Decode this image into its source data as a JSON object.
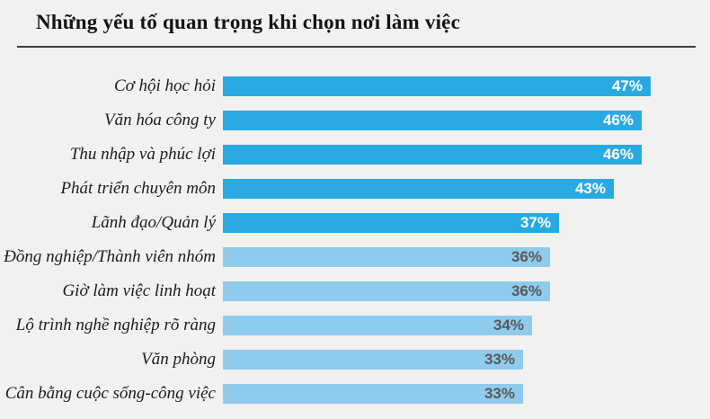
{
  "chart_data": {
    "type": "bar",
    "orientation": "horizontal",
    "title": "Những yếu tố quan trọng khi chọn nơi làm việc",
    "categories": [
      "Cơ hội học hỏi",
      "Văn hóa công ty",
      "Thu nhập và phúc lợi",
      "Phát triển chuyên môn",
      "Lãnh đạo/Quản lý",
      "Đồng nghiệp/Thành viên nhóm",
      "Giờ làm việc linh hoạt",
      "Lộ trình nghề nghiệp rõ ràng",
      "Văn phòng",
      "Cân bằng cuộc sống-công việc"
    ],
    "values": [
      47,
      46,
      46,
      43,
      37,
      36,
      36,
      34,
      33,
      33
    ],
    "value_labels": [
      "47%",
      "46%",
      "46%",
      "43%",
      "37%",
      "36%",
      "36%",
      "34%",
      "33%",
      "33%"
    ],
    "value_suffix": "%",
    "highlight_count": 5,
    "xlim": [
      0,
      50
    ],
    "grid": false,
    "legend": "none",
    "colors": {
      "bar_primary": "#29a9e2",
      "bar_secondary": "#8ecbed",
      "value_label_on_primary": "#ffffff",
      "value_label_on_secondary": "#58595b",
      "background": "#f1f1ef",
      "title_color": "#141414",
      "rule_color": "#3c3c3c"
    }
  }
}
